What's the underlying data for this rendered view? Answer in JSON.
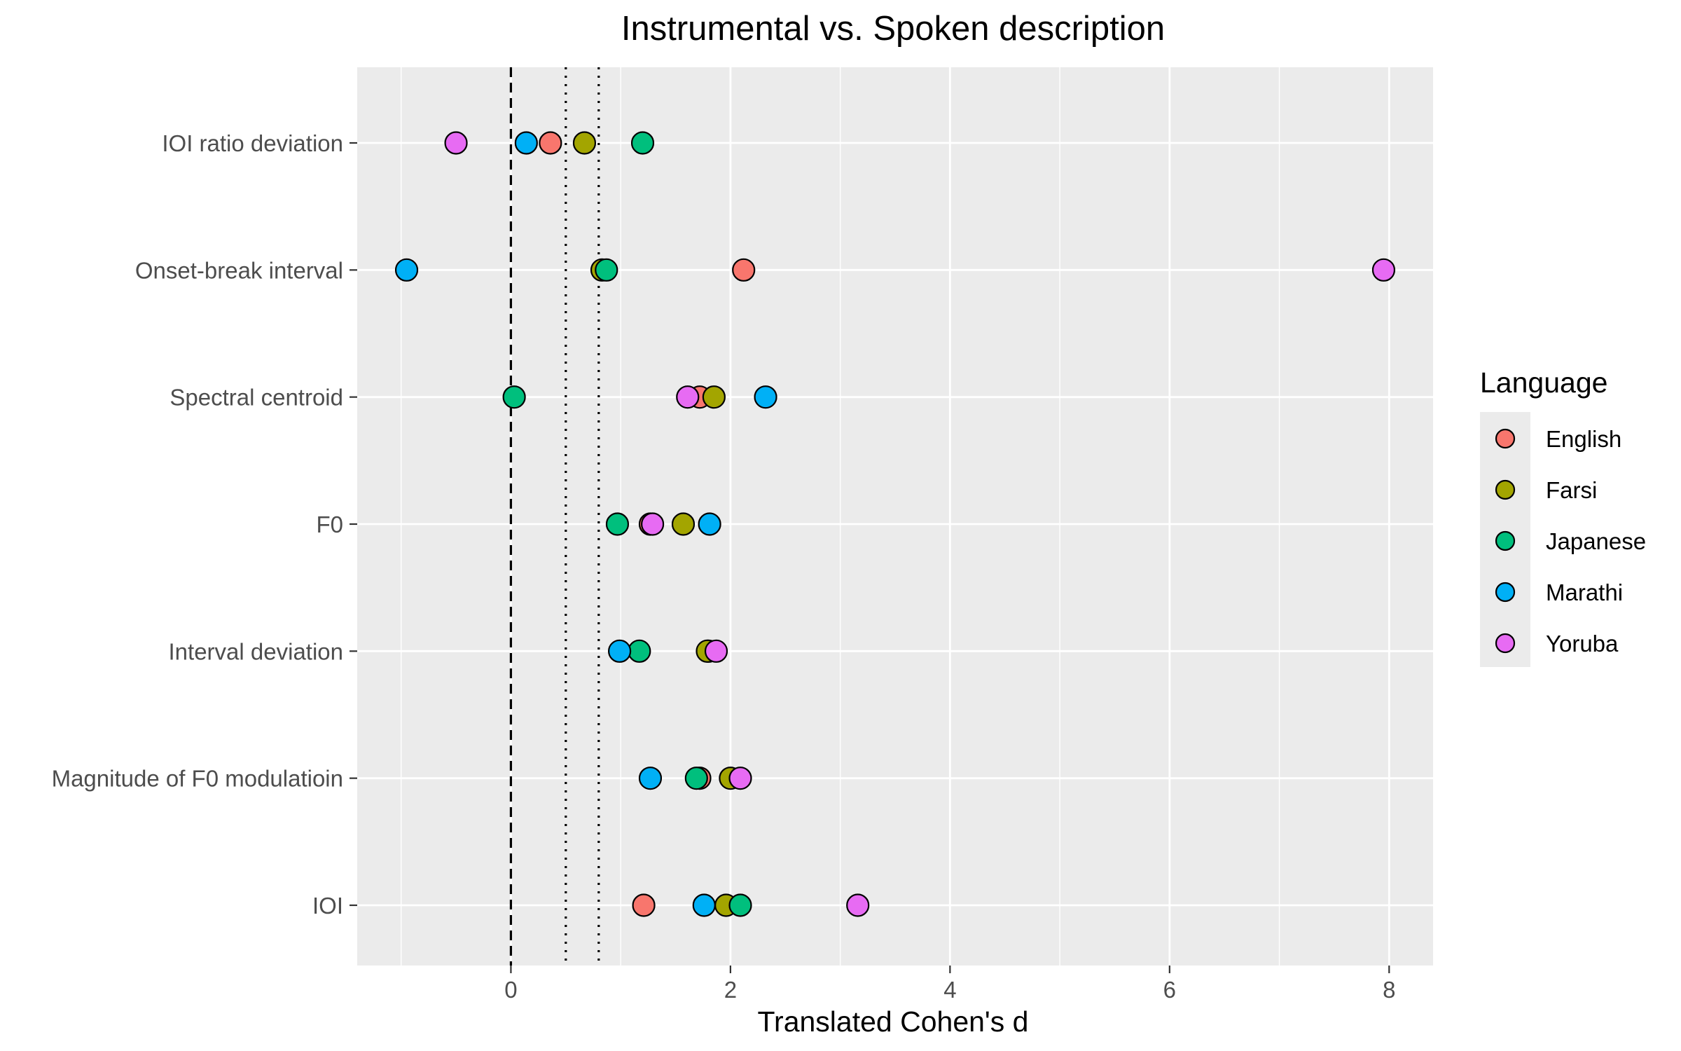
{
  "chart_data": {
    "type": "scatter",
    "title": "Instrumental vs. Spoken description",
    "xlabel": "Translated Cohen's d",
    "ylabel": "",
    "xlim": [
      -1.4,
      8.4
    ],
    "x_ticks": [
      0,
      2,
      4,
      6,
      8
    ],
    "x_tick_labels": [
      "0",
      "2",
      "4",
      "6",
      "8"
    ],
    "categories": [
      "IOI ratio deviation",
      "Onset-break interval",
      "Spectral centroid",
      "F0",
      "Interval deviation",
      "Magnitude of F0 modulatioin",
      "IOI"
    ],
    "reference_lines": [
      {
        "x": 0,
        "style": "dashed"
      },
      {
        "x": 0.5,
        "style": "dotted"
      },
      {
        "x": 0.8,
        "style": "dotted"
      }
    ],
    "grid": true,
    "legend": {
      "title": "Language",
      "position": "right"
    },
    "series": [
      {
        "name": "English",
        "color": "#F8766D",
        "values": [
          0.36,
          2.12,
          1.72,
          1.27,
          1.8,
          1.72,
          1.21
        ]
      },
      {
        "name": "Farsi",
        "color": "#A3A500",
        "values": [
          0.67,
          0.83,
          1.85,
          1.57,
          1.79,
          2.0,
          1.96
        ]
      },
      {
        "name": "Japanese",
        "color": "#00BF7D",
        "values": [
          1.2,
          0.87,
          0.03,
          0.97,
          1.17,
          1.69,
          2.09
        ]
      },
      {
        "name": "Marathi",
        "color": "#00B0F6",
        "values": [
          0.14,
          -0.95,
          2.32,
          1.81,
          0.99,
          1.27,
          1.76
        ]
      },
      {
        "name": "Yoruba",
        "color": "#E76BF3",
        "values": [
          -0.5,
          7.95,
          1.61,
          1.29,
          1.87,
          2.09,
          3.16
        ]
      }
    ]
  }
}
